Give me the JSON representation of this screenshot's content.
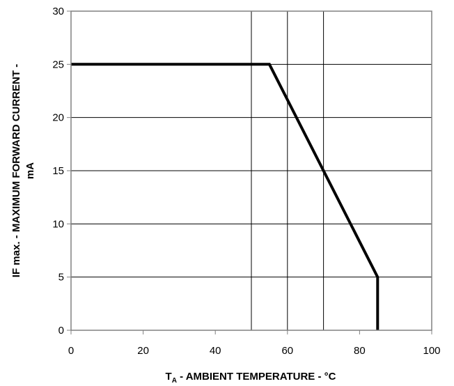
{
  "chart_data": {
    "type": "line",
    "title": "",
    "xlabel": {
      "t": "T",
      "sub": "A",
      "rest": " - AMBIENT TEMPERATURE - °C"
    },
    "ylabel": {
      "line1": "IF max. - MAXIMUM FORWARD CURRENT -",
      "line2": "mA"
    },
    "xlim": [
      0,
      100
    ],
    "ylim": [
      0,
      30
    ],
    "x_ticks": [
      0,
      20,
      40,
      60,
      80,
      100
    ],
    "y_ticks": [
      0,
      5,
      10,
      15,
      20,
      25,
      30
    ],
    "x_gridlines": [
      50,
      60,
      70
    ],
    "y_gridlines": [
      5,
      10,
      15,
      20,
      25
    ],
    "grid": true,
    "legend": "none",
    "series": [
      {
        "color": "#000000",
        "points": [
          {
            "x": 0,
            "y": 25
          },
          {
            "x": 55,
            "y": 25
          },
          {
            "x": 85,
            "y": 5
          },
          {
            "x": 85,
            "y": 0
          }
        ]
      }
    ]
  }
}
